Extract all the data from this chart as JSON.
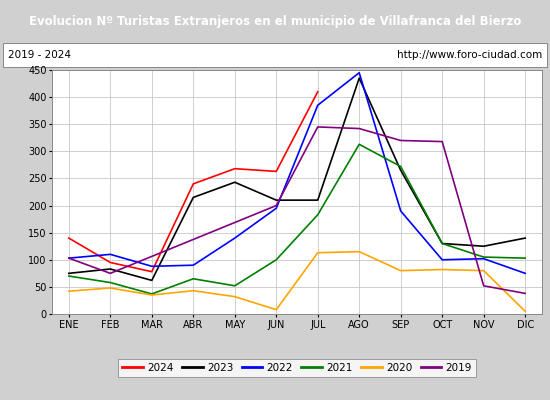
{
  "title": "Evolucion Nº Turistas Extranjeros en el municipio de Villafranca del Bierzo",
  "title_bg": "#4f86c6",
  "title_color": "white",
  "subtitle_left": "2019 - 2024",
  "subtitle_right": "http://www.foro-ciudad.com",
  "months": [
    "ENE",
    "FEB",
    "MAR",
    "ABR",
    "MAY",
    "JUN",
    "JUL",
    "AGO",
    "SEP",
    "OCT",
    "NOV",
    "DIC"
  ],
  "ylim": [
    0,
    450
  ],
  "yticks": [
    0,
    50,
    100,
    150,
    200,
    250,
    300,
    350,
    400,
    450
  ],
  "series": {
    "2024": {
      "values": [
        140,
        95,
        78,
        240,
        268,
        263,
        410,
        null,
        null,
        null,
        null,
        null
      ],
      "color": "red",
      "linewidth": 1.2
    },
    "2023": {
      "values": [
        75,
        83,
        62,
        215,
        243,
        210,
        210,
        435,
        265,
        130,
        125,
        140
      ],
      "color": "black",
      "linewidth": 1.2
    },
    "2022": {
      "values": [
        103,
        110,
        88,
        90,
        140,
        195,
        385,
        445,
        190,
        100,
        102,
        75
      ],
      "color": "blue",
      "linewidth": 1.2
    },
    "2021": {
      "values": [
        70,
        58,
        37,
        65,
        52,
        100,
        183,
        313,
        272,
        130,
        105,
        103
      ],
      "color": "green",
      "linewidth": 1.2
    },
    "2020": {
      "values": [
        42,
        48,
        35,
        43,
        32,
        8,
        113,
        115,
        80,
        82,
        80,
        5
      ],
      "color": "orange",
      "linewidth": 1.2
    },
    "2019": {
      "values": [
        103,
        75,
        null,
        null,
        null,
        200,
        345,
        342,
        320,
        318,
        52,
        38
      ],
      "color": "purple",
      "linewidth": 1.2
    }
  },
  "legend_order": [
    "2024",
    "2023",
    "2022",
    "2021",
    "2020",
    "2019"
  ],
  "outer_bg": "#d0d0d0",
  "plot_bg": "white",
  "grid_color": "#c8c8c8",
  "subtitle_bg": "#e8e8e8"
}
